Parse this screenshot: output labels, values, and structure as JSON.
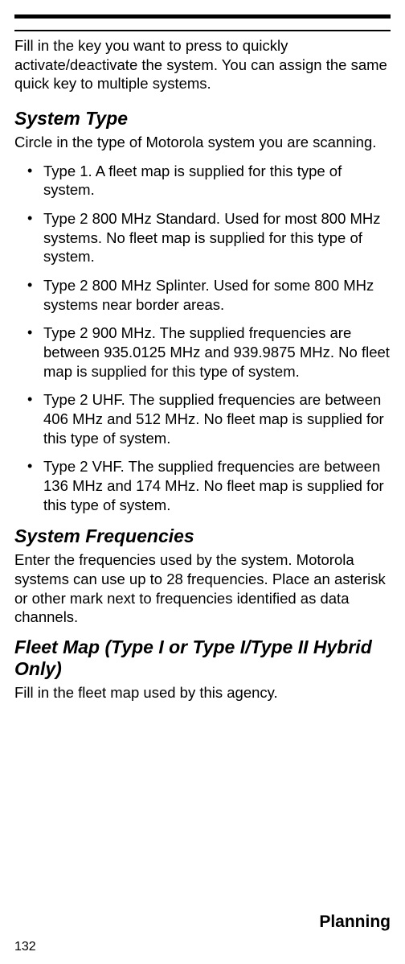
{
  "intro": "Fill in the key you want to press to quickly activate/deactivate the system. You can assign the same quick key to multiple systems.",
  "sections": {
    "systemType": {
      "heading": "System Type",
      "paragraph": "Circle in the type of Motorola system you are scanning.",
      "bullets": [
        "Type 1. A fleet map is supplied for this type of system.",
        "Type 2 800 MHz Standard. Used for most 800 MHz systems.  No fleet map is supplied for this type of system.",
        "Type 2 800 MHz Splinter. Used for some 800 MHz systems near border areas.",
        "Type 2 900 MHz.  The supplied frequencies are between 935.0125 MHz and 939.9875 MHz. No fleet map is supplied for this type of system.",
        "Type 2 UHF. The supplied frequencies are between 406 MHz and 512 MHz. No fleet map is supplied for this type of system.",
        "Type 2 VHF. The supplied frequencies are between 136 MHz and 174 MHz. No fleet map is supplied for this type of system."
      ]
    },
    "systemFrequencies": {
      "heading": "System Frequencies",
      "paragraph": "Enter the frequencies used by the system. Motorola systems can use up to 28 frequencies. Place an asterisk or other mark next to frequencies identified as data channels."
    },
    "fleetMap": {
      "heading": "Fleet Map (Type I or Type I/Type II Hybrid Only)",
      "paragraph": "Fill in the fleet map used by this agency."
    }
  },
  "footerTitle": "Planning",
  "pageNumber": "132"
}
